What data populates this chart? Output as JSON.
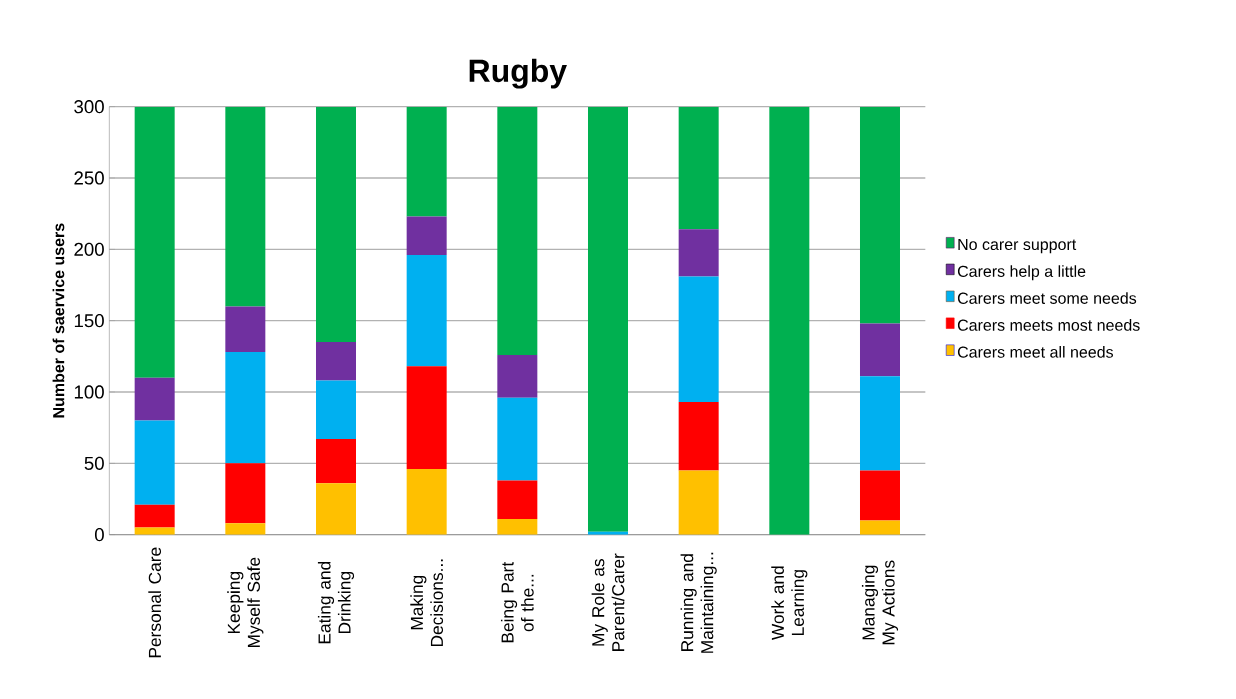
{
  "chart_data": {
    "type": "bar",
    "title": "Rugby",
    "ylabel": "Number of saervice users",
    "categories": [
      "Personal Care",
      "Keeping Myself Safe",
      "Eating and Drinking",
      "Making Decisions...",
      "Being Part of the...",
      "My Role as Parent/Carer",
      "Running and Maintaining...",
      "Work and Learning",
      "Managing My Actions"
    ],
    "stacked": true,
    "series": [
      {
        "name": "Carers meet all needs",
        "color": "#ffc000",
        "values": [
          5,
          8,
          36,
          46,
          11,
          0,
          45,
          0,
          10
        ]
      },
      {
        "name": "Carers meets most needs",
        "color": "#ff0000",
        "values": [
          16,
          42,
          31,
          72,
          27,
          0,
          48,
          0,
          35
        ]
      },
      {
        "name": "Carers meet some needs",
        "color": "#00b0f0",
        "values": [
          59,
          78,
          41,
          78,
          58,
          2,
          88,
          0,
          66
        ]
      },
      {
        "name": "Carers help a little",
        "color": "#7030a0",
        "values": [
          30,
          32,
          27,
          27,
          30,
          0,
          33,
          0,
          37
        ]
      },
      {
        "name": "No carer support",
        "color": "#00b050",
        "values": [
          190,
          140,
          165,
          77,
          174,
          298,
          86,
          300,
          152
        ]
      }
    ],
    "ylim": [
      0,
      300
    ],
    "yticks": [
      0,
      50,
      100,
      150,
      200,
      250,
      300
    ],
    "grid": "y",
    "legend": "right"
  }
}
